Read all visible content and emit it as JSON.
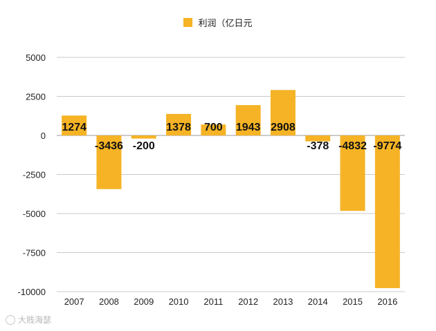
{
  "chart_data": {
    "type": "bar",
    "title": "",
    "legend": {
      "label": "利润（亿日元",
      "position": "top-center"
    },
    "categories": [
      "2007",
      "2008",
      "2009",
      "2010",
      "2011",
      "2012",
      "2013",
      "2014",
      "2015",
      "2016"
    ],
    "values": [
      1274,
      -3436,
      -200,
      1378,
      700,
      1943,
      2908,
      -378,
      -4832,
      -9774
    ],
    "data_labels": [
      "1274",
      "-3436",
      "-200",
      "1378",
      "700",
      "1943",
      "2908",
      "-378",
      "-4832",
      "-9774"
    ],
    "yticks": [
      5000,
      2500,
      0,
      -2500,
      -5000,
      -7500,
      -10000
    ],
    "ylim": [
      -10000,
      5000
    ],
    "grid": true,
    "bar_color": "#f5b325"
  },
  "watermark": {
    "text": "大贱海瑟"
  }
}
